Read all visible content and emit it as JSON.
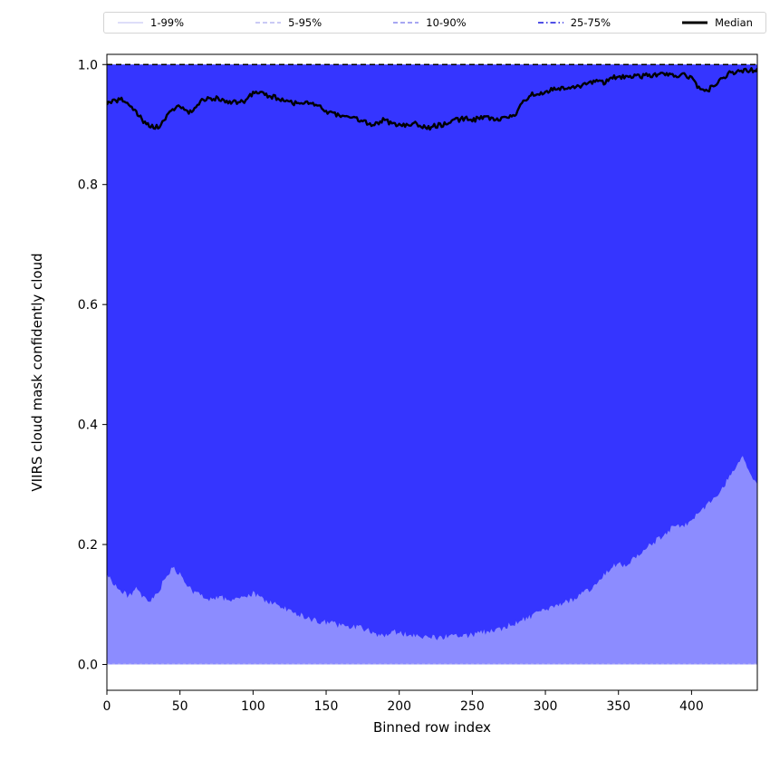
{
  "figure": {
    "background": "#ffffff",
    "legend": {
      "items": [
        {
          "label": "1-99%",
          "style": "solid",
          "color": "#d4d4f7",
          "width": 1.5
        },
        {
          "label": "5-95%",
          "style": "dashed",
          "color": "#b8b8f2",
          "width": 1.5
        },
        {
          "label": "10-90%",
          "style": "dashed",
          "color": "#8a8aee",
          "width": 1.5
        },
        {
          "label": "25-75%",
          "style": "dashdot",
          "color": "#5050e6",
          "width": 2
        },
        {
          "label": "Median",
          "style": "solid",
          "color": "#000000",
          "width": 3
        }
      ]
    }
  },
  "chart_data": {
    "type": "area",
    "title": "",
    "xlabel": "Binned row index",
    "ylabel": "VIIRS cloud mask confidently cloud",
    "xlim": [
      0,
      445
    ],
    "ylim": [
      -0.043,
      1.017
    ],
    "xticks": [
      0,
      50,
      100,
      150,
      200,
      250,
      300,
      350,
      400
    ],
    "yticks": [
      0.0,
      0.2,
      0.4,
      0.6,
      0.8,
      1.0
    ],
    "grid": false,
    "legend_position": "top",
    "band_color": "#0000ff",
    "bands": [
      {
        "name": "1-99%",
        "lower": "p1",
        "upper": "p99",
        "alpha": 0.18
      },
      {
        "name": "5-95%",
        "lower": "p5",
        "upper": "p95",
        "alpha": 0.18
      },
      {
        "name": "10-90%",
        "lower": "p10",
        "upper": "p90",
        "alpha": 0.18
      },
      {
        "name": "25-75%",
        "lower": "p25",
        "upper": "p75",
        "alpha": 0.62
      }
    ],
    "x": [
      0,
      5,
      10,
      15,
      20,
      25,
      30,
      35,
      40,
      45,
      50,
      55,
      60,
      65,
      70,
      75,
      80,
      85,
      90,
      95,
      100,
      105,
      110,
      115,
      120,
      125,
      130,
      135,
      140,
      145,
      150,
      155,
      160,
      165,
      170,
      175,
      180,
      185,
      190,
      195,
      200,
      205,
      210,
      215,
      220,
      225,
      230,
      235,
      240,
      245,
      250,
      255,
      260,
      265,
      270,
      275,
      280,
      285,
      290,
      295,
      300,
      305,
      310,
      315,
      320,
      325,
      330,
      335,
      340,
      345,
      350,
      355,
      360,
      365,
      370,
      375,
      380,
      385,
      390,
      395,
      400,
      405,
      410,
      415,
      420,
      425,
      430,
      435,
      440,
      445
    ],
    "percentiles": {
      "p1": 0.0,
      "p5": 0.0,
      "p10": 0.0,
      "p25": [
        0.15,
        0.135,
        0.12,
        0.115,
        0.125,
        0.11,
        0.105,
        0.12,
        0.145,
        0.16,
        0.15,
        0.13,
        0.12,
        0.115,
        0.11,
        0.112,
        0.11,
        0.108,
        0.112,
        0.11,
        0.118,
        0.112,
        0.105,
        0.1,
        0.095,
        0.09,
        0.085,
        0.08,
        0.075,
        0.072,
        0.07,
        0.068,
        0.065,
        0.063,
        0.062,
        0.06,
        0.058,
        0.045,
        0.05,
        0.055,
        0.052,
        0.05,
        0.05,
        0.048,
        0.046,
        0.045,
        0.045,
        0.048,
        0.05,
        0.048,
        0.05,
        0.052,
        0.055,
        0.058,
        0.06,
        0.065,
        0.07,
        0.075,
        0.08,
        0.085,
        0.09,
        0.095,
        0.1,
        0.105,
        0.11,
        0.118,
        0.125,
        0.135,
        0.15,
        0.16,
        0.17,
        0.165,
        0.175,
        0.185,
        0.195,
        0.205,
        0.215,
        0.225,
        0.235,
        0.23,
        0.24,
        0.255,
        0.265,
        0.275,
        0.29,
        0.31,
        0.33,
        0.345,
        0.32,
        0.3
      ],
      "p75": 1.0,
      "p90": 1.0,
      "p95": 1.0,
      "p99": 1.0
    },
    "median": [
      0.935,
      0.938,
      0.942,
      0.935,
      0.92,
      0.905,
      0.898,
      0.895,
      0.91,
      0.925,
      0.932,
      0.92,
      0.925,
      0.94,
      0.945,
      0.943,
      0.94,
      0.938,
      0.935,
      0.94,
      0.952,
      0.955,
      0.948,
      0.945,
      0.94,
      0.938,
      0.935,
      0.938,
      0.935,
      0.93,
      0.922,
      0.918,
      0.915,
      0.912,
      0.91,
      0.905,
      0.9,
      0.903,
      0.908,
      0.9,
      0.898,
      0.9,
      0.902,
      0.898,
      0.895,
      0.898,
      0.9,
      0.905,
      0.908,
      0.91,
      0.908,
      0.91,
      0.912,
      0.908,
      0.91,
      0.912,
      0.915,
      0.94,
      0.95,
      0.952,
      0.955,
      0.958,
      0.96,
      0.958,
      0.962,
      0.965,
      0.968,
      0.975,
      0.97,
      0.98,
      0.978,
      0.98,
      0.982,
      0.98,
      0.983,
      0.982,
      0.985,
      0.983,
      0.98,
      0.982,
      0.978,
      0.96,
      0.955,
      0.965,
      0.975,
      0.985,
      0.988,
      0.99,
      0.99,
      0.99
    ],
    "median_color": "#000000",
    "median_width": 2.4,
    "top_reference_line": {
      "y": 1.0,
      "color": "#000000",
      "style": "dashed",
      "width": 1.4
    },
    "zero_edge_line": {
      "y": 0.001,
      "color": "#a8a8f0",
      "style": "dashed",
      "width": 1
    }
  }
}
